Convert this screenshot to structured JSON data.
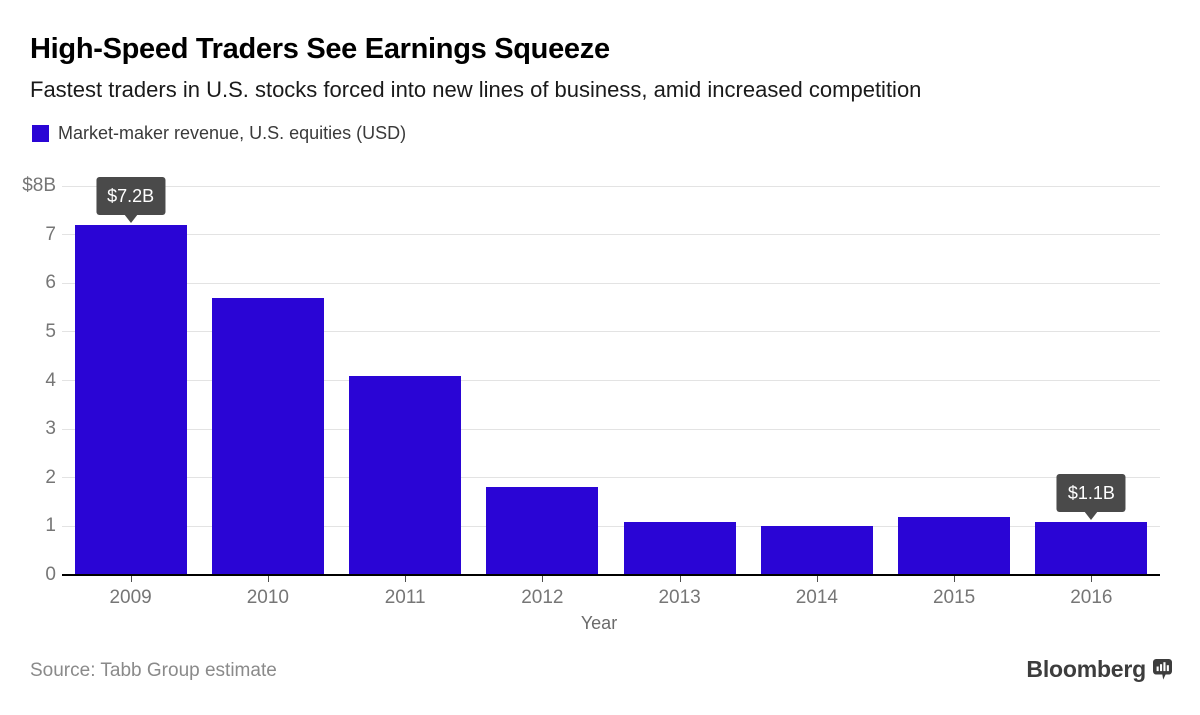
{
  "header": {
    "title": "High-Speed Traders See Earnings Squeeze",
    "subtitle": "Fastest traders in U.S. stocks forced into new lines of business, amid increased competition"
  },
  "legend": {
    "label": "Market-maker revenue, U.S. equities (USD)",
    "swatch_color": "#2a05d5"
  },
  "chart_data": {
    "type": "bar",
    "title": "Market-maker revenue, U.S. equities (USD)",
    "categories": [
      "2009",
      "2010",
      "2011",
      "2012",
      "2013",
      "2014",
      "2015",
      "2016"
    ],
    "values": [
      7.2,
      5.7,
      4.1,
      1.8,
      1.1,
      1.0,
      1.2,
      1.1
    ],
    "xlabel": "Year",
    "ylabel": "",
    "ylim": [
      0,
      8
    ],
    "y_ticks": [
      {
        "value": 8,
        "label": "$8B"
      },
      {
        "value": 7,
        "label": "7"
      },
      {
        "value": 6,
        "label": "6"
      },
      {
        "value": 5,
        "label": "5"
      },
      {
        "value": 4,
        "label": "4"
      },
      {
        "value": 3,
        "label": "3"
      },
      {
        "value": 2,
        "label": "2"
      },
      {
        "value": 1,
        "label": "1"
      },
      {
        "value": 0,
        "label": "0"
      }
    ],
    "grid": true,
    "legend_position": "top-left",
    "bar_color": "#2a05d5",
    "annotations": [
      {
        "category": "2009",
        "label": "$7.2B"
      },
      {
        "category": "2016",
        "label": "$1.1B"
      }
    ]
  },
  "footer": {
    "source": "Source: Tabb Group estimate",
    "brand": "Bloomberg"
  }
}
